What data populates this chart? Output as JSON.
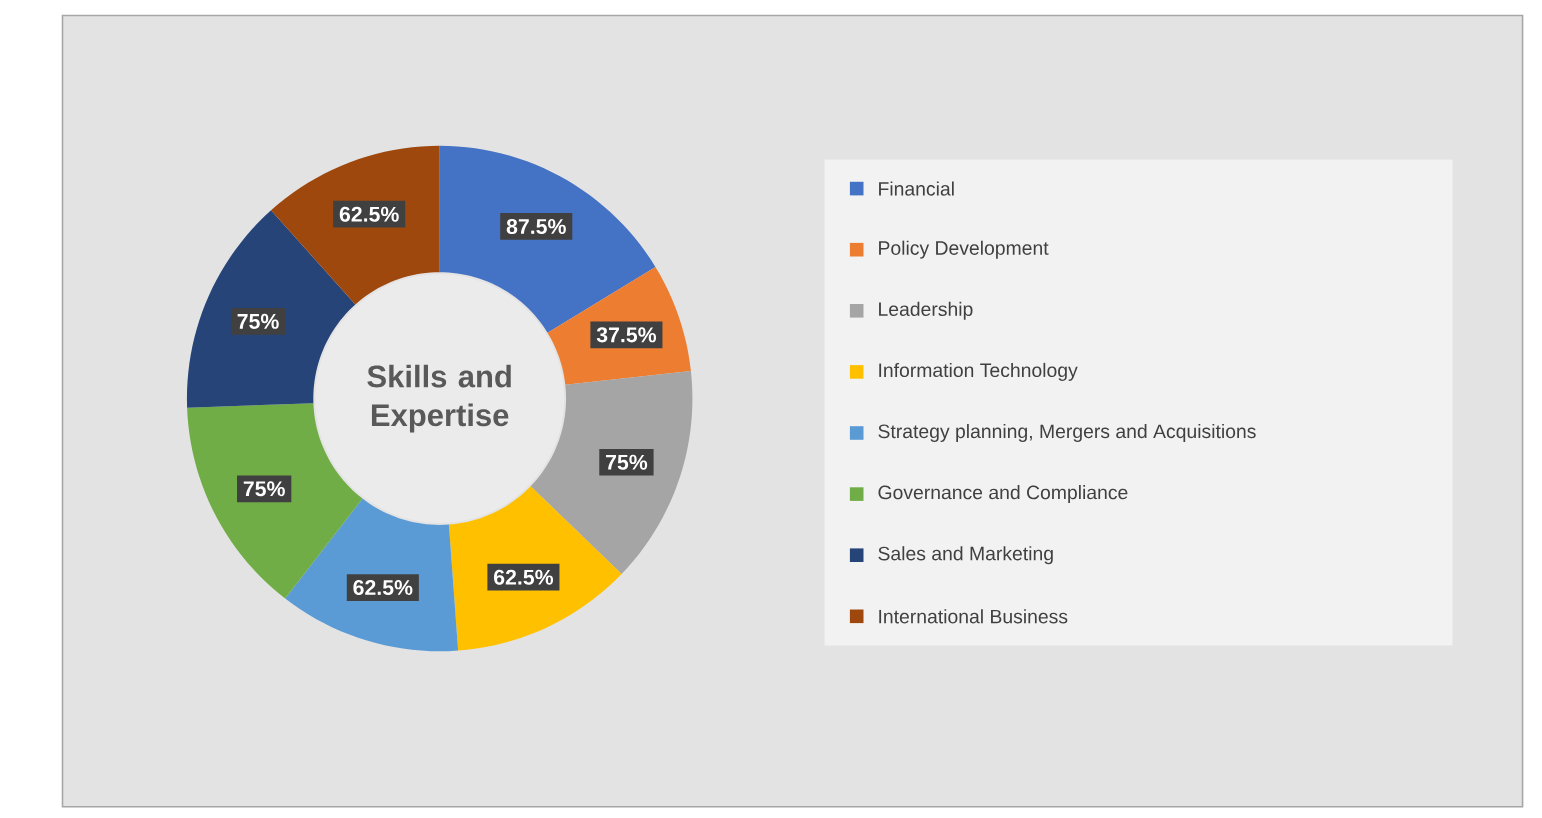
{
  "chart_data": {
    "type": "donut",
    "title": "Skills and Expertise",
    "categories": [
      "Financial",
      "Policy Development",
      "Leadership",
      "Information Technology",
      "Strategy planning, Mergers and Acquisitions",
      "Governance and Compliance",
      "Sales and Marketing",
      "International Business"
    ],
    "values": [
      87.5,
      37.5,
      75,
      62.5,
      62.5,
      75,
      75,
      62.5
    ],
    "value_labels": [
      "87.5%",
      "37.5%",
      "75%",
      "62.5%",
      "62.5%",
      "75%",
      "75%",
      "62.5%"
    ],
    "colors": [
      "#4472c4",
      "#ed7d31",
      "#a5a5a5",
      "#ffc000",
      "#5b9bd5",
      "#70ad47",
      "#264478",
      "#9e480e"
    ],
    "legend": "right"
  }
}
